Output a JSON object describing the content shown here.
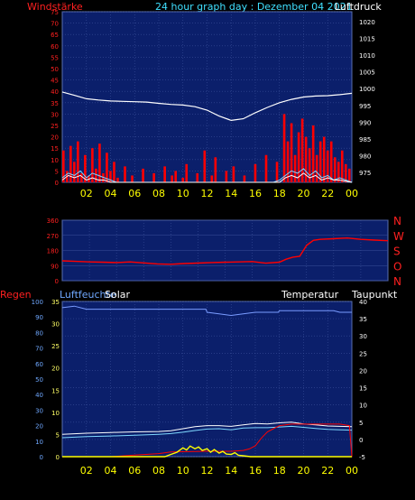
{
  "header": {
    "left_title": "Windstärke",
    "center_title": "24 hour graph day : Dezember 04 2021",
    "right_title": "Luftdruck"
  },
  "colors": {
    "background": "#000000",
    "plot": "#0b1f6b",
    "grid": "#3a4f9a",
    "red": "#ff0000",
    "white": "#ffffff",
    "cyan": "#7fd8ff",
    "yellow": "#ffff00",
    "blue_line": "#7a9cff",
    "x_tick": "#ffff00"
  },
  "chart_data": [
    {
      "type": "bar",
      "name": "wind-panel",
      "title": "",
      "left_axis": {
        "label": "Windstärke",
        "ylim": [
          0,
          75
        ],
        "ticks": [
          0,
          5,
          10,
          15,
          20,
          25,
          30,
          35,
          40,
          45,
          50,
          55,
          60,
          65,
          70,
          75
        ]
      },
      "right_axis": {
        "label": "Luftdruck",
        "ylim": [
          972,
          1023
        ],
        "ticks": [
          975,
          980,
          985,
          990,
          995,
          1000,
          1005,
          1010,
          1015,
          1020
        ]
      },
      "x_ticks": [
        "02",
        "04",
        "06",
        "08",
        "10",
        "12",
        "14",
        "16",
        "18",
        "20",
        "22",
        "00"
      ],
      "xlim": [
        0,
        24
      ],
      "series": [
        {
          "name": "Luftdruck",
          "axis": "right",
          "color": "#ffffff",
          "kind": "line",
          "x": [
            0,
            1,
            2,
            3,
            4,
            5,
            6,
            7,
            8,
            9,
            10,
            11,
            12,
            13,
            14,
            15,
            16,
            17,
            18,
            19,
            20,
            21,
            22,
            23,
            24
          ],
          "values": [
            999,
            998,
            997,
            996.6,
            996.3,
            996.2,
            996.1,
            996.0,
            995.6,
            995.3,
            995.1,
            994.6,
            993.6,
            991.8,
            990.5,
            991.0,
            992.8,
            994.4,
            995.8,
            996.8,
            997.5,
            997.8,
            997.9,
            998.2,
            998.6
          ]
        },
        {
          "name": "gusts",
          "axis": "left",
          "color": "#ff0000",
          "kind": "bars",
          "x": [
            0,
            0.3,
            0.6,
            0.9,
            1.2,
            1.5,
            1.8,
            2.1,
            2.4,
            2.7,
            3.0,
            3.3,
            3.6,
            3.9,
            4.2,
            4.5,
            4.8,
            5.1,
            5.4,
            5.7,
            6.0,
            6.3,
            6.6,
            6.9,
            7.2,
            7.5,
            7.8,
            8.1,
            8.4,
            8.7,
            9.0,
            9.3,
            9.6,
            9.9,
            10.2,
            10.5,
            10.8,
            11.1,
            11.4,
            11.7,
            12.0,
            12.3,
            12.6,
            12.9,
            13.2,
            13.5,
            13.8,
            14.1,
            14.4,
            14.7,
            15.0,
            15.3,
            15.6,
            15.9,
            16.2,
            16.5,
            16.8,
            17.1,
            17.4,
            17.7,
            18.0,
            18.3,
            18.6,
            18.9,
            19.2,
            19.5,
            19.8,
            20.1,
            20.4,
            20.7,
            21.0,
            21.3,
            21.6,
            21.9,
            22.2,
            22.5,
            22.8,
            23.1,
            23.4,
            23.7
          ],
          "values": [
            14,
            5,
            16,
            9,
            18,
            4,
            12,
            3,
            15,
            6,
            17,
            4,
            13,
            5,
            9,
            2,
            0,
            7,
            0,
            3,
            0,
            0,
            6,
            0,
            0,
            4,
            0,
            0,
            7,
            0,
            3,
            5,
            0,
            2,
            8,
            0,
            0,
            4,
            0,
            14,
            0,
            3,
            11,
            0,
            0,
            5,
            0,
            7,
            0,
            0,
            3,
            0,
            0,
            8,
            0,
            0,
            12,
            0,
            0,
            9,
            0,
            30,
            18,
            26,
            12,
            22,
            28,
            20,
            15,
            25,
            12,
            18,
            20,
            14,
            18,
            11,
            9,
            14,
            8,
            6
          ]
        },
        {
          "name": "mean",
          "axis": "left",
          "color": "#7fd8ff",
          "kind": "line",
          "x": [
            0,
            0.5,
            1,
            1.5,
            2,
            2.5,
            3,
            3.5,
            4,
            4.5,
            5,
            6,
            8,
            10,
            12,
            14,
            16,
            17.5,
            18,
            18.5,
            19,
            19.5,
            20,
            20.5,
            21,
            21.5,
            22,
            22.5,
            23,
            24
          ],
          "values": [
            2,
            4,
            3,
            5,
            2,
            4,
            3,
            2,
            1,
            0,
            0,
            0,
            0,
            0,
            0,
            0,
            0,
            0,
            1,
            3,
            5,
            4,
            6,
            3,
            5,
            2,
            3,
            1,
            2,
            0
          ]
        },
        {
          "name": "mean2",
          "axis": "left",
          "color": "#ffffff",
          "kind": "line",
          "x": [
            0,
            0.5,
            1,
            1.5,
            2,
            2.5,
            3,
            3.5,
            4,
            4.5,
            5,
            6,
            8,
            10,
            12,
            14,
            16,
            17.5,
            18,
            18.5,
            19,
            19.5,
            20,
            20.5,
            21,
            21.5,
            22,
            22.5,
            23,
            24
          ],
          "values": [
            1,
            3,
            2,
            3,
            1,
            2,
            1,
            1,
            0,
            0,
            0,
            0,
            0,
            0,
            0,
            0,
            0,
            0,
            0,
            2,
            3,
            2,
            4,
            2,
            3,
            1,
            2,
            1,
            1,
            0
          ]
        }
      ]
    },
    {
      "type": "line",
      "name": "direction-panel",
      "title": "",
      "left_axis": {
        "ylim": [
          0,
          360
        ],
        "ticks": [
          0,
          90,
          180,
          270,
          360
        ]
      },
      "right_labels": [
        "N",
        "W",
        "S",
        "O",
        "N"
      ],
      "xlim": [
        0,
        24
      ],
      "series": [
        {
          "name": "Windrichtung",
          "color": "#ff0000",
          "x": [
            0,
            1,
            2,
            3,
            4,
            5,
            6,
            7,
            8,
            9,
            10,
            11,
            12,
            13,
            14,
            15,
            16,
            16.5,
            17,
            17.5,
            18,
            18.5,
            19,
            20,
            21,
            22,
            23,
            24
          ],
          "values": [
            118,
            115,
            112,
            110,
            108,
            112,
            106,
            100,
            98,
            102,
            105,
            108,
            110,
            112,
            114,
            104,
            110,
            128,
            140,
            145,
            210,
            240,
            246,
            250,
            254,
            246,
            242,
            238
          ]
        }
      ]
    },
    {
      "type": "line",
      "name": "climate-panel",
      "title": "",
      "labels": {
        "left1": "Regen",
        "left2": "Luftfeuchte",
        "left3": "Solar",
        "right1": "Temperatur",
        "right2": "Taupunkt"
      },
      "left_axis": {
        "ylim": [
          0,
          100
        ],
        "ticks": [
          0,
          10,
          20,
          30,
          40,
          50,
          60,
          70,
          80,
          90,
          100
        ]
      },
      "left2_axis": {
        "ylim": [
          0,
          35
        ],
        "ticks": [
          0,
          5,
          10,
          15,
          20,
          25,
          30,
          35
        ]
      },
      "right_axis": {
        "ylim": [
          -5,
          40
        ],
        "ticks": [
          -5,
          0,
          5,
          10,
          15,
          20,
          25,
          30,
          35,
          40
        ]
      },
      "x_ticks": [
        "02",
        "04",
        "06",
        "08",
        "10",
        "12",
        "14",
        "16",
        "18",
        "20",
        "22",
        "00"
      ],
      "xlim": [
        0,
        24
      ],
      "series": [
        {
          "name": "Luftfeuchte",
          "axis": "left",
          "color": "#7a9cff",
          "x": [
            0,
            1,
            2,
            4,
            6,
            8,
            10,
            11.9,
            12,
            13,
            14,
            15,
            16,
            17,
            17.9,
            18,
            20,
            22,
            22.5,
            23,
            24
          ],
          "values": [
            96,
            97,
            95,
            95,
            95,
            95,
            95,
            95,
            93,
            92,
            91,
            92,
            93,
            93,
            93,
            94,
            94,
            94,
            94,
            93,
            93
          ]
        },
        {
          "name": "Temperatur",
          "axis": "right",
          "color": "#ffffff",
          "x": [
            0,
            2,
            4,
            6,
            8,
            9,
            10,
            11,
            12,
            13,
            14,
            15,
            16,
            17,
            18,
            19,
            20,
            21,
            22,
            23,
            24
          ],
          "values": [
            1.5,
            1.8,
            2.0,
            2.2,
            2.3,
            2.5,
            3.1,
            3.7,
            4.0,
            4.0,
            3.8,
            4.2,
            4.6,
            4.5,
            4.8,
            5.0,
            4.5,
            4.2,
            3.9,
            3.8,
            3.7
          ]
        },
        {
          "name": "Taupunkt",
          "axis": "right",
          "color": "#7fd8ff",
          "x": [
            0,
            2,
            4,
            6,
            8,
            9,
            10,
            11,
            12,
            13,
            14,
            15,
            16,
            17,
            18,
            19,
            20,
            21,
            22,
            23,
            24
          ],
          "values": [
            0.5,
            0.8,
            1.0,
            1.2,
            1.5,
            1.7,
            2.1,
            2.6,
            3.0,
            3.1,
            2.8,
            3.3,
            3.4,
            3.4,
            3.6,
            3.8,
            3.5,
            3.2,
            2.9,
            2.8,
            2.7
          ]
        },
        {
          "name": "Regen",
          "axis": "left",
          "color": "#ff0000",
          "x": [
            0,
            4,
            5,
            6,
            8,
            9,
            12,
            14,
            15,
            15.5,
            16,
            16.5,
            17,
            17.5,
            18,
            19,
            20,
            21,
            22,
            22.5,
            23,
            23.8,
            24
          ],
          "values": [
            0,
            0,
            0.5,
            1,
            2,
            3,
            3.5,
            3.5,
            4,
            5,
            7,
            12,
            16,
            18,
            20,
            21,
            21,
            21,
            21,
            21,
            21,
            20,
            0
          ]
        },
        {
          "name": "Solar",
          "axis": "left2",
          "color": "#ffff00",
          "x": [
            0,
            8.5,
            9,
            9.5,
            10,
            10.3,
            10.6,
            11,
            11.3,
            11.6,
            12,
            12.3,
            12.6,
            13,
            13.3,
            13.6,
            14,
            14.3,
            14.6,
            15,
            15.3,
            15.6,
            16,
            24
          ],
          "values": [
            0,
            0,
            0.5,
            1,
            2,
            1.5,
            2.4,
            1.8,
            2.2,
            1.4,
            1.8,
            1.0,
            1.6,
            0.8,
            1.2,
            0.6,
            0.5,
            0.9,
            0.3,
            0.2,
            0.1,
            0,
            0,
            0
          ]
        }
      ]
    }
  ]
}
